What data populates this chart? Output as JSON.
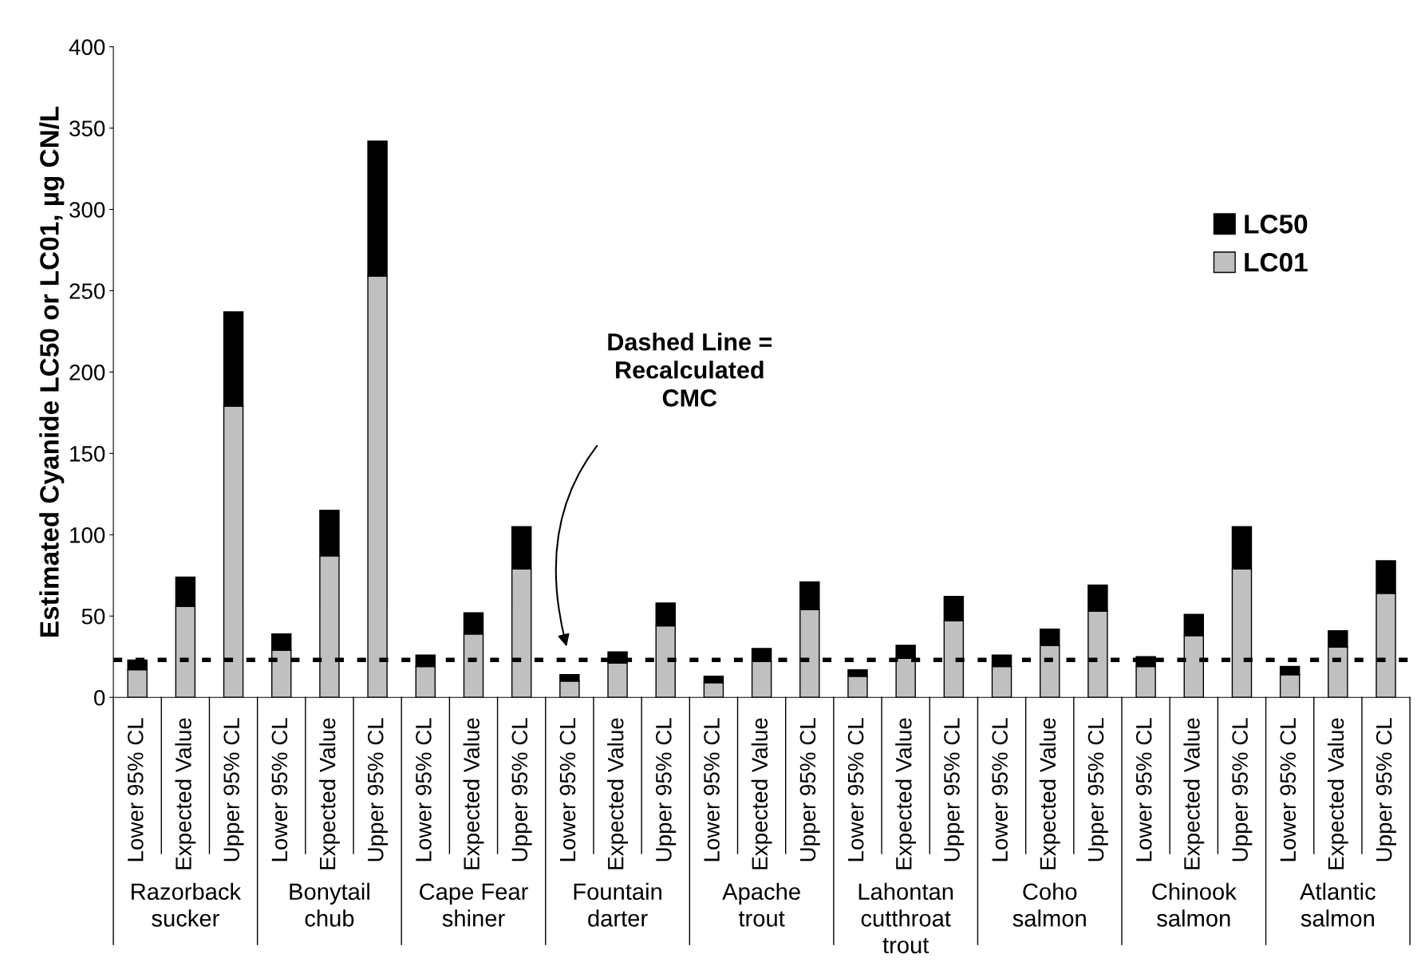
{
  "chart_data": {
    "type": "bar",
    "stacked": true,
    "ylabel": "Estimated Cyanide LC50 or LC01, µg CN/L",
    "categories": [
      "Lower 95% CL",
      "Expected Value",
      "Upper 95% CL",
      "Lower 95% CL",
      "Expected Value",
      "Upper 95% CL",
      "Lower 95% CL",
      "Expected Value",
      "Upper 95% CL",
      "Lower 95% CL",
      "Expected Value",
      "Upper 95% CL",
      "Lower 95% CL",
      "Expected Value",
      "Upper 95% CL",
      "Lower 95% CL",
      "Expected Value",
      "Upper 95% CL",
      "Lower 95% CL",
      "Expected Value",
      "Upper 95% CL",
      "Lower 95% CL",
      "Expected Value",
      "Upper 95% CL",
      "Lower 95% CL",
      "Expected Value",
      "Upper 95% CL"
    ],
    "series": [
      {
        "name": "LC01",
        "color": "#c0c0c0",
        "values": [
          17,
          56,
          179,
          29,
          87,
          259,
          19,
          39,
          79,
          10,
          21,
          44,
          9,
          22,
          54,
          13,
          24,
          47,
          19,
          32,
          53,
          19,
          38,
          79,
          14,
          31,
          64
        ]
      },
      {
        "name": "LC50",
        "color": "#000000",
        "values": [
          6,
          18,
          58,
          10,
          28,
          83,
          7,
          13,
          26,
          4,
          7,
          14,
          4,
          8,
          17,
          4,
          8,
          15,
          7,
          10,
          16,
          6,
          13,
          26,
          5,
          10,
          20
        ]
      }
    ],
    "ylim": [
      0,
      400
    ],
    "yticks": [
      0,
      50,
      100,
      150,
      200,
      250,
      300,
      350,
      400
    ],
    "ref_lines": [
      {
        "axis": "y",
        "value": 23,
        "color": "#000000",
        "line_style": "dotted"
      }
    ],
    "annotations": [
      "Dashed Line =\nRecalculated\nCMC",
      "Razorback\nsucker",
      "Bonytail\nchub",
      "Cape Fear\nshiner",
      "Fountain\ndarter",
      "Apache\ntrout",
      "Lahontan\ncutthroat\ntrout",
      "Coho\nsalmon",
      "Chinook\nsalmon",
      "Atlantic\nsalmon"
    ],
    "legend": "top right",
    "grid": false
  }
}
